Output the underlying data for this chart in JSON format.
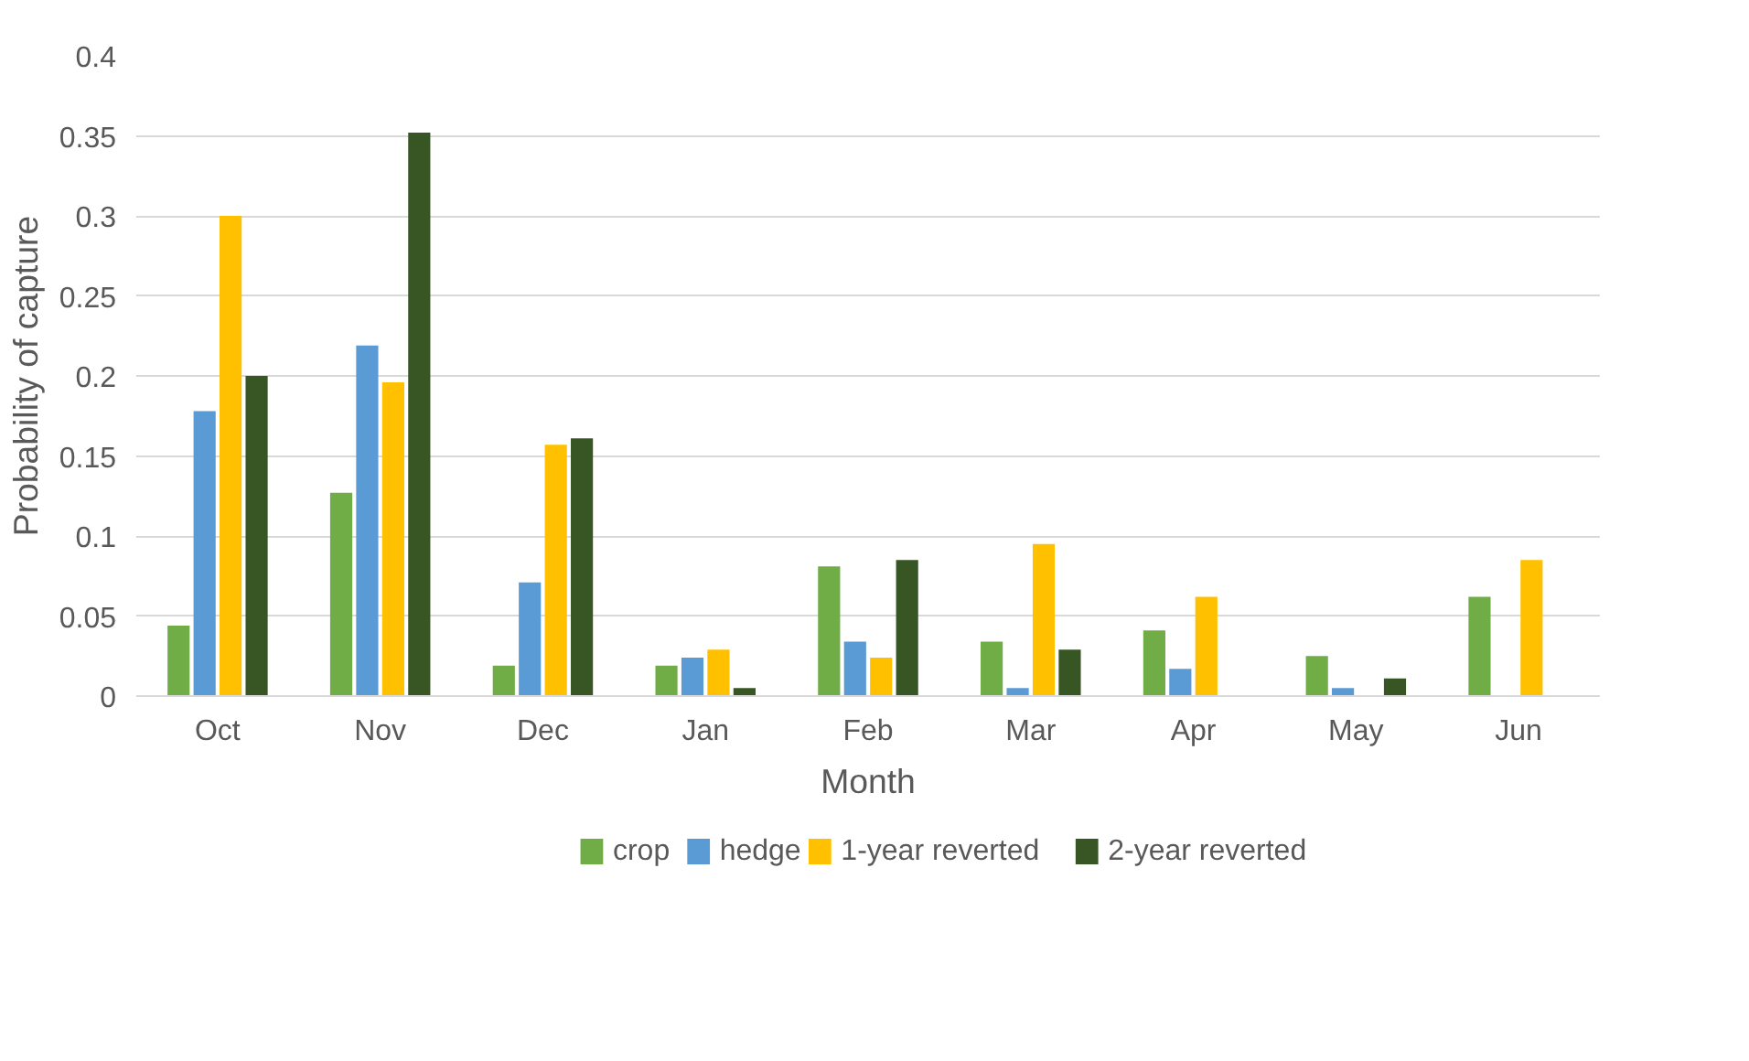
{
  "chart_data": {
    "type": "bar",
    "xlabel": "Month",
    "ylabel": "Probability of capture",
    "categories": [
      "Oct",
      "Nov",
      "Dec",
      "Jan",
      "Feb",
      "Mar",
      "Apr",
      "May",
      "Jun"
    ],
    "series": [
      {
        "name": "crop",
        "color": "#70ad47",
        "values": [
          0.044,
          0.127,
          0.019,
          0.019,
          0.081,
          0.034,
          0.041,
          0.025,
          0.062
        ]
      },
      {
        "name": "hedge",
        "color": "#5b9bd5",
        "values": [
          0.178,
          0.219,
          0.071,
          0.024,
          0.034,
          0.005,
          0.017,
          0.005,
          0
        ]
      },
      {
        "name": "1-year reverted",
        "color": "#ffc000",
        "values": [
          0.3,
          0.196,
          0.157,
          0.029,
          0.024,
          0.095,
          0.062,
          0,
          0.085
        ]
      },
      {
        "name": "2-year reverted",
        "color": "#375623",
        "values": [
          0.2,
          0.352,
          0.161,
          0.005,
          0.085,
          0.029,
          0,
          0.011,
          0
        ]
      }
    ],
    "ylim": [
      0,
      0.4
    ],
    "yticks": [
      0,
      0.05,
      0.1,
      0.15,
      0.2,
      0.25,
      0.3,
      0.35,
      0.4
    ],
    "grid": "y",
    "legend": "bottom"
  }
}
